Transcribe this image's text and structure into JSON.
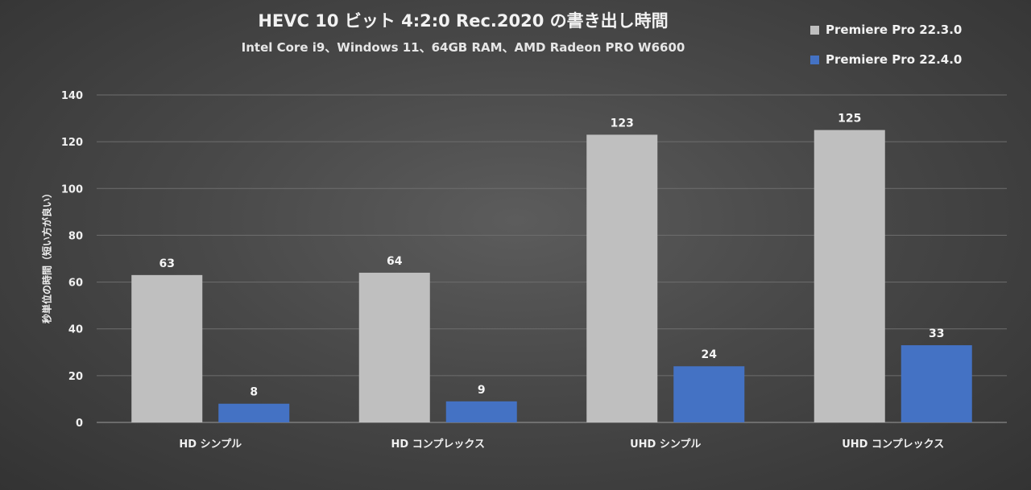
{
  "chart_data": {
    "type": "bar",
    "title": "HEVC 10 ビット 4:2:0 Rec.2020 の書き出し時間",
    "subtitle": "Intel Core i9、Windows 11、64GB RAM、AMD Radeon PRO W6600",
    "ylabel": "秒単位の時間（短い方が良い）",
    "xlabel": "",
    "ylim": [
      0,
      140
    ],
    "yticks": [
      0,
      20,
      40,
      60,
      80,
      100,
      120,
      140
    ],
    "grid": true,
    "legend_position": "top-right",
    "categories": [
      "HD シンプル",
      "HD コンプレックス",
      "UHD シンプル",
      "UHD コンプレックス"
    ],
    "series": [
      {
        "name": "Premiere Pro 22.3.0",
        "color": "#bfbfbf",
        "values": [
          63,
          64,
          123,
          125
        ]
      },
      {
        "name": "Premiere Pro 22.4.0",
        "color": "#4472c4",
        "values": [
          8,
          9,
          24,
          33
        ]
      }
    ]
  }
}
